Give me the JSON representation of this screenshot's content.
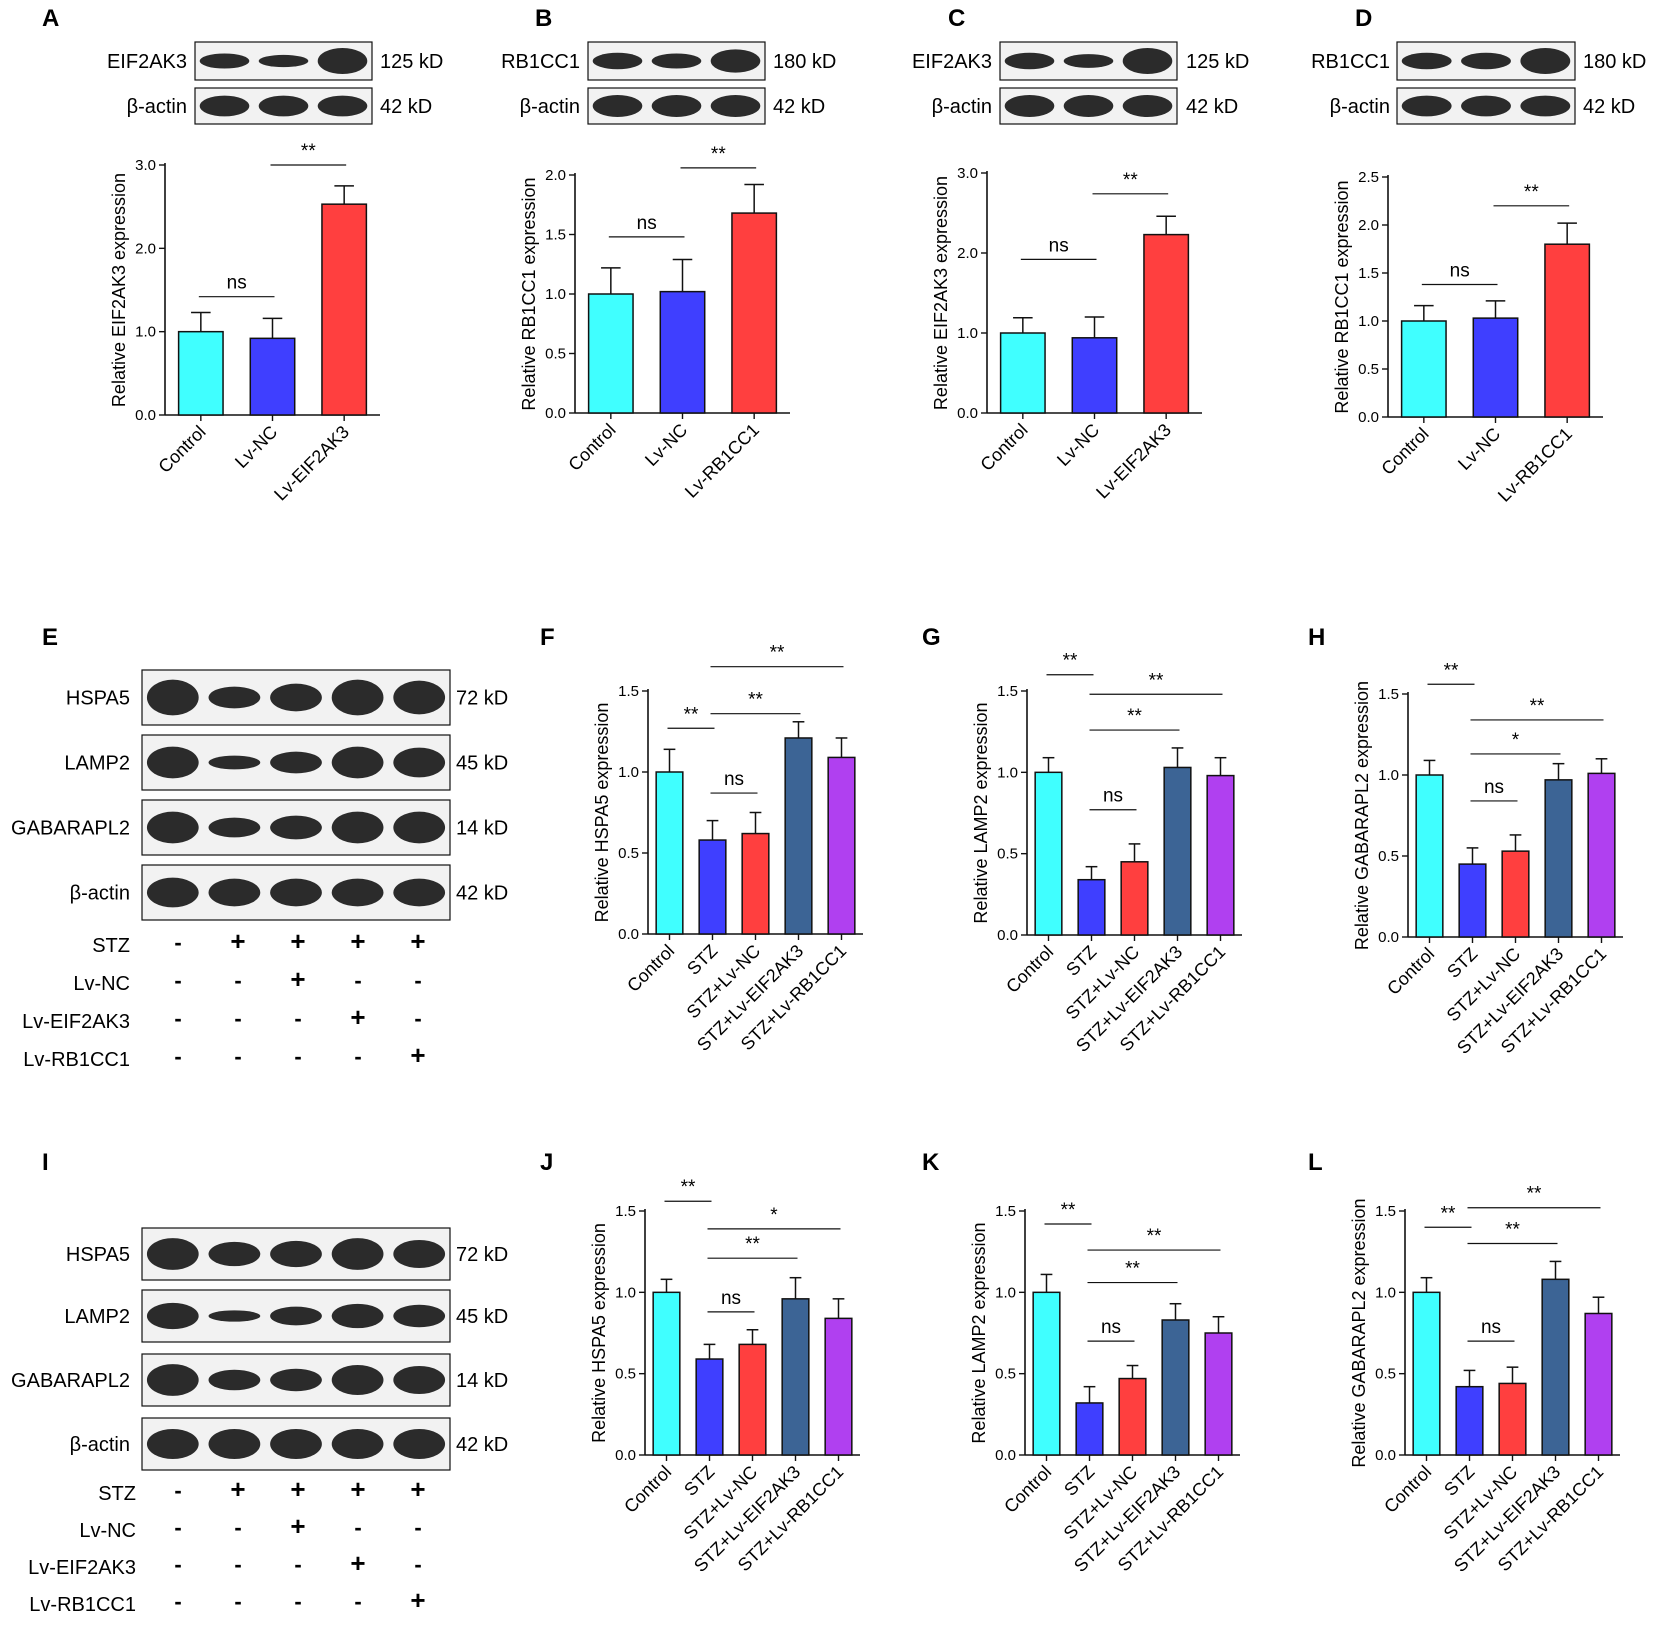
{
  "colors": {
    "control": "#40ffff",
    "lvnc": "#3f3fff",
    "lvgene": "#ff3f3f",
    "eif2ak3": "#3c6495",
    "rb1cc1": "#b040f0",
    "axis": "#111111",
    "blot_band": "#1a1a1a"
  },
  "blot_panels": [
    {
      "letter": "A",
      "bands": [
        {
          "name": "EIF2AK3",
          "size": "125 kD"
        },
        {
          "name": "β-actin",
          "size": "42 kD"
        }
      ]
    },
    {
      "letter": "B",
      "bands": [
        {
          "name": "RB1CC1",
          "size": "180 kD"
        },
        {
          "name": "β-actin",
          "size": "42 kD"
        }
      ]
    },
    {
      "letter": "C",
      "bands": [
        {
          "name": "EIF2AK3",
          "size": "125 kD"
        },
        {
          "name": "β-actin",
          "size": "42 kD"
        }
      ]
    },
    {
      "letter": "D",
      "bands": [
        {
          "name": "RB1CC1",
          "size": "180 kD"
        },
        {
          "name": "β-actin",
          "size": "42 kD"
        }
      ]
    },
    {
      "letter": "E",
      "bands": [
        {
          "name": "HSPA5",
          "size": "72 kD"
        },
        {
          "name": "LAMP2",
          "size": "45 kD"
        },
        {
          "name": "GABARAPL2",
          "size": "14 kD"
        },
        {
          "name": "β-actin",
          "size": "42 kD"
        }
      ],
      "treatments": [
        {
          "name": "STZ",
          "signs": [
            "-",
            "+",
            "+",
            "+",
            "+"
          ]
        },
        {
          "name": "Lv-NC",
          "signs": [
            "-",
            "-",
            "+",
            "-",
            "-"
          ]
        },
        {
          "name": "Lv-EIF2AK3",
          "signs": [
            "-",
            "-",
            "-",
            "+",
            "-"
          ]
        },
        {
          "name": "Lv-RB1CC1",
          "signs": [
            "-",
            "-",
            "-",
            "-",
            "+"
          ]
        }
      ]
    },
    {
      "letter": "I",
      "bands": [
        {
          "name": "HSPA5",
          "size": "72 kD"
        },
        {
          "name": "LAMP2",
          "size": "45 kD"
        },
        {
          "name": "GABARAPL2",
          "size": "14 kD"
        },
        {
          "name": "β-actin",
          "size": "42 kD"
        }
      ],
      "treatments": [
        {
          "name": "STZ",
          "signs": [
            "-",
            "+",
            "+",
            "+",
            "+"
          ]
        },
        {
          "name": "Lv-NC",
          "signs": [
            "-",
            "-",
            "+",
            "-",
            "-"
          ]
        },
        {
          "name": "Lv-EIF2AK3",
          "signs": [
            "-",
            "-",
            "-",
            "+",
            "-"
          ]
        },
        {
          "name": "Lv-RB1CC1",
          "signs": [
            "-",
            "-",
            "-",
            "-",
            "+"
          ]
        }
      ]
    }
  ],
  "chart_data": [
    {
      "letter": "A",
      "type": "bar",
      "ylabel": "Relative EIF2AK3 expression",
      "ylim": [
        0,
        3.0
      ],
      "yticks": [
        "0.0",
        "1.0",
        "2.0",
        "3.0"
      ],
      "categories": [
        "Control",
        "Lv-NC",
        "Lv-EIF2AK3"
      ],
      "values": [
        1.0,
        0.92,
        2.53
      ],
      "errors": [
        0.23,
        0.24,
        0.22
      ],
      "sig": [
        {
          "label": "ns",
          "from": 0,
          "to": 1,
          "y": 1.42
        },
        {
          "label": "**",
          "from": 1,
          "to": 2,
          "y": 3.0
        }
      ]
    },
    {
      "letter": "B",
      "type": "bar",
      "ylabel": "Relative RB1CC1 expression",
      "ylim": [
        0,
        2.0
      ],
      "yticks": [
        "0.0",
        "0.5",
        "1.0",
        "1.5",
        "2.0"
      ],
      "categories": [
        "Control",
        "Lv-NC",
        "Lv-RB1CC1"
      ],
      "values": [
        1.0,
        1.02,
        1.68
      ],
      "errors": [
        0.22,
        0.27,
        0.24
      ],
      "sig": [
        {
          "label": "ns",
          "from": 0,
          "to": 1,
          "y": 1.48
        },
        {
          "label": "**",
          "from": 1,
          "to": 2,
          "y": 2.06
        }
      ]
    },
    {
      "letter": "C",
      "type": "bar",
      "ylabel": "Relative EIF2AK3 expression",
      "ylim": [
        0,
        3.0
      ],
      "yticks": [
        "0.0",
        "1.0",
        "2.0",
        "3.0"
      ],
      "categories": [
        "Control",
        "Lv-NC",
        "Lv-EIF2AK3"
      ],
      "values": [
        1.0,
        0.94,
        2.23
      ],
      "errors": [
        0.19,
        0.26,
        0.23
      ],
      "sig": [
        {
          "label": "ns",
          "from": 0,
          "to": 1,
          "y": 1.92
        },
        {
          "label": "**",
          "from": 1,
          "to": 2,
          "y": 2.74
        }
      ]
    },
    {
      "letter": "D",
      "type": "bar",
      "ylabel": "Relative RB1CC1 expression",
      "ylim": [
        0,
        2.5
      ],
      "yticks": [
        "0.0",
        "0.5",
        "1.0",
        "1.5",
        "2.0",
        "2.5"
      ],
      "categories": [
        "Control",
        "Lv-NC",
        "Lv-RB1CC1"
      ],
      "values": [
        1.0,
        1.03,
        1.8
      ],
      "errors": [
        0.16,
        0.18,
        0.22
      ],
      "sig": [
        {
          "label": "ns",
          "from": 0,
          "to": 1,
          "y": 1.38
        },
        {
          "label": "**",
          "from": 1,
          "to": 2,
          "y": 2.2
        }
      ]
    },
    {
      "letter": "F",
      "type": "bar",
      "ylabel": "Relative HSPA5 expression",
      "ylim": [
        0,
        1.5
      ],
      "yticks": [
        "0.0",
        "0.5",
        "1.0",
        "1.5"
      ],
      "categories": [
        "Control",
        "STZ",
        "STZ+Lv-NC",
        "STZ+Lv-EIF2AK3",
        "STZ+Lv-RB1CC1"
      ],
      "values": [
        1.0,
        0.58,
        0.62,
        1.21,
        1.09
      ],
      "errors": [
        0.14,
        0.12,
        0.13,
        0.1,
        0.12
      ],
      "sig": [
        {
          "label": "**",
          "from": 0,
          "to": 1,
          "y": 1.27
        },
        {
          "label": "ns",
          "from": 1,
          "to": 2,
          "y": 0.87
        },
        {
          "label": "**",
          "from": 1,
          "to": 3,
          "y": 1.36
        },
        {
          "label": "**",
          "from": 1,
          "to": 4,
          "y": 1.65
        }
      ]
    },
    {
      "letter": "G",
      "type": "bar",
      "ylabel": "Relative LAMP2 expression",
      "ylim": [
        0,
        1.5
      ],
      "yticks": [
        "0.0",
        "0.5",
        "1.0",
        "1.5"
      ],
      "categories": [
        "Control",
        "STZ",
        "STZ+Lv-NC",
        "STZ+Lv-EIF2AK3",
        "STZ+Lv-RB1CC1"
      ],
      "values": [
        1.0,
        0.34,
        0.45,
        1.03,
        0.98
      ],
      "errors": [
        0.09,
        0.08,
        0.11,
        0.12,
        0.11
      ],
      "sig": [
        {
          "label": "**",
          "from": 0,
          "to": 1,
          "y": 1.6
        },
        {
          "label": "ns",
          "from": 1,
          "to": 2,
          "y": 0.77
        },
        {
          "label": "**",
          "from": 1,
          "to": 3,
          "y": 1.26
        },
        {
          "label": "**",
          "from": 1,
          "to": 4,
          "y": 1.48
        }
      ]
    },
    {
      "letter": "H",
      "type": "bar",
      "ylabel": "Relative GABARAPL2 expression",
      "ylim": [
        0,
        1.5
      ],
      "yticks": [
        "0.0",
        "0.5",
        "1.0",
        "1.5"
      ],
      "categories": [
        "Control",
        "STZ",
        "STZ+Lv-NC",
        "STZ+Lv-EIF2AK3",
        "STZ+Lv-RB1CC1"
      ],
      "values": [
        1.0,
        0.45,
        0.53,
        0.97,
        1.01
      ],
      "errors": [
        0.09,
        0.1,
        0.1,
        0.1,
        0.09
      ],
      "sig": [
        {
          "label": "**",
          "from": 0,
          "to": 1,
          "y": 1.56
        },
        {
          "label": "ns",
          "from": 1,
          "to": 2,
          "y": 0.84
        },
        {
          "label": "*",
          "from": 1,
          "to": 3,
          "y": 1.13
        },
        {
          "label": "**",
          "from": 1,
          "to": 4,
          "y": 1.34
        }
      ]
    },
    {
      "letter": "J",
      "type": "bar",
      "ylabel": "Relative HSPA5 expression",
      "ylim": [
        0,
        1.5
      ],
      "yticks": [
        "0.0",
        "0.5",
        "1.0",
        "1.5"
      ],
      "categories": [
        "Control",
        "STZ",
        "STZ+Lv-NC",
        "STZ+Lv-EIF2AK3",
        "STZ+Lv-RB1CC1"
      ],
      "values": [
        1.0,
        0.59,
        0.68,
        0.96,
        0.84
      ],
      "errors": [
        0.08,
        0.09,
        0.09,
        0.13,
        0.12
      ],
      "sig": [
        {
          "label": "**",
          "from": 0,
          "to": 1,
          "y": 1.56
        },
        {
          "label": "ns",
          "from": 1,
          "to": 2,
          "y": 0.88
        },
        {
          "label": "**",
          "from": 1,
          "to": 3,
          "y": 1.21
        },
        {
          "label": "*",
          "from": 1,
          "to": 4,
          "y": 1.39
        }
      ]
    },
    {
      "letter": "K",
      "type": "bar",
      "ylabel": "Relative LAMP2 expression",
      "ylim": [
        0,
        1.5
      ],
      "yticks": [
        "0.0",
        "0.5",
        "1.0",
        "1.5"
      ],
      "categories": [
        "Control",
        "STZ",
        "STZ+Lv-NC",
        "STZ+Lv-EIF2AK3",
        "STZ+Lv-RB1CC1"
      ],
      "values": [
        1.0,
        0.32,
        0.47,
        0.83,
        0.75
      ],
      "errors": [
        0.11,
        0.1,
        0.08,
        0.1,
        0.1
      ],
      "sig": [
        {
          "label": "**",
          "from": 0,
          "to": 1,
          "y": 1.42
        },
        {
          "label": "ns",
          "from": 1,
          "to": 2,
          "y": 0.7
        },
        {
          "label": "**",
          "from": 1,
          "to": 3,
          "y": 1.06
        },
        {
          "label": "**",
          "from": 1,
          "to": 4,
          "y": 1.26
        }
      ]
    },
    {
      "letter": "L",
      "type": "bar",
      "ylabel": "Relative GABARAPL2 expression",
      "ylim": [
        0,
        1.5
      ],
      "yticks": [
        "0.0",
        "0.5",
        "1.0",
        "1.5"
      ],
      "categories": [
        "Control",
        "STZ",
        "STZ+Lv-NC",
        "STZ+Lv-EIF2AK3",
        "STZ+Lv-RB1CC1"
      ],
      "values": [
        1.0,
        0.42,
        0.44,
        1.08,
        0.87
      ],
      "errors": [
        0.09,
        0.1,
        0.1,
        0.11,
        0.1
      ],
      "sig": [
        {
          "label": "**",
          "from": 0,
          "to": 1,
          "y": 1.4
        },
        {
          "label": "ns",
          "from": 1,
          "to": 2,
          "y": 0.7
        },
        {
          "label": "**",
          "from": 1,
          "to": 3,
          "y": 1.3
        },
        {
          "label": "**",
          "from": 1,
          "to": 4,
          "y": 1.52
        }
      ]
    }
  ]
}
